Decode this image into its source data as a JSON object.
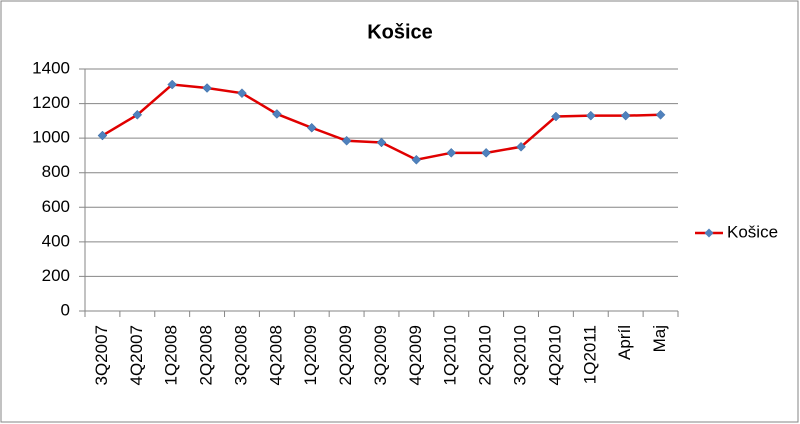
{
  "chart_data": {
    "type": "line",
    "title": "Košice",
    "categories": [
      "3Q2007",
      "4Q2007",
      "1Q2008",
      "2Q2008",
      "3Q2008",
      "4Q2008",
      "1Q2009",
      "2Q2009",
      "3Q2009",
      "4Q2009",
      "1Q2010",
      "2Q2010",
      "3Q2010",
      "4Q2010",
      "1Q2011",
      "Apríl",
      "Maj"
    ],
    "series": [
      {
        "name": "Košice",
        "color": "#e00000",
        "marker_color": "#4f81bd",
        "values": [
          1015,
          1135,
          1310,
          1290,
          1260,
          1140,
          1060,
          985,
          975,
          875,
          915,
          915,
          950,
          1125,
          1130,
          1130,
          1135
        ]
      }
    ],
    "ylim": [
      0,
      1400
    ],
    "yticks": [
      0,
      200,
      400,
      600,
      800,
      1000,
      1200,
      1400
    ],
    "grid": true,
    "legend": "right"
  }
}
